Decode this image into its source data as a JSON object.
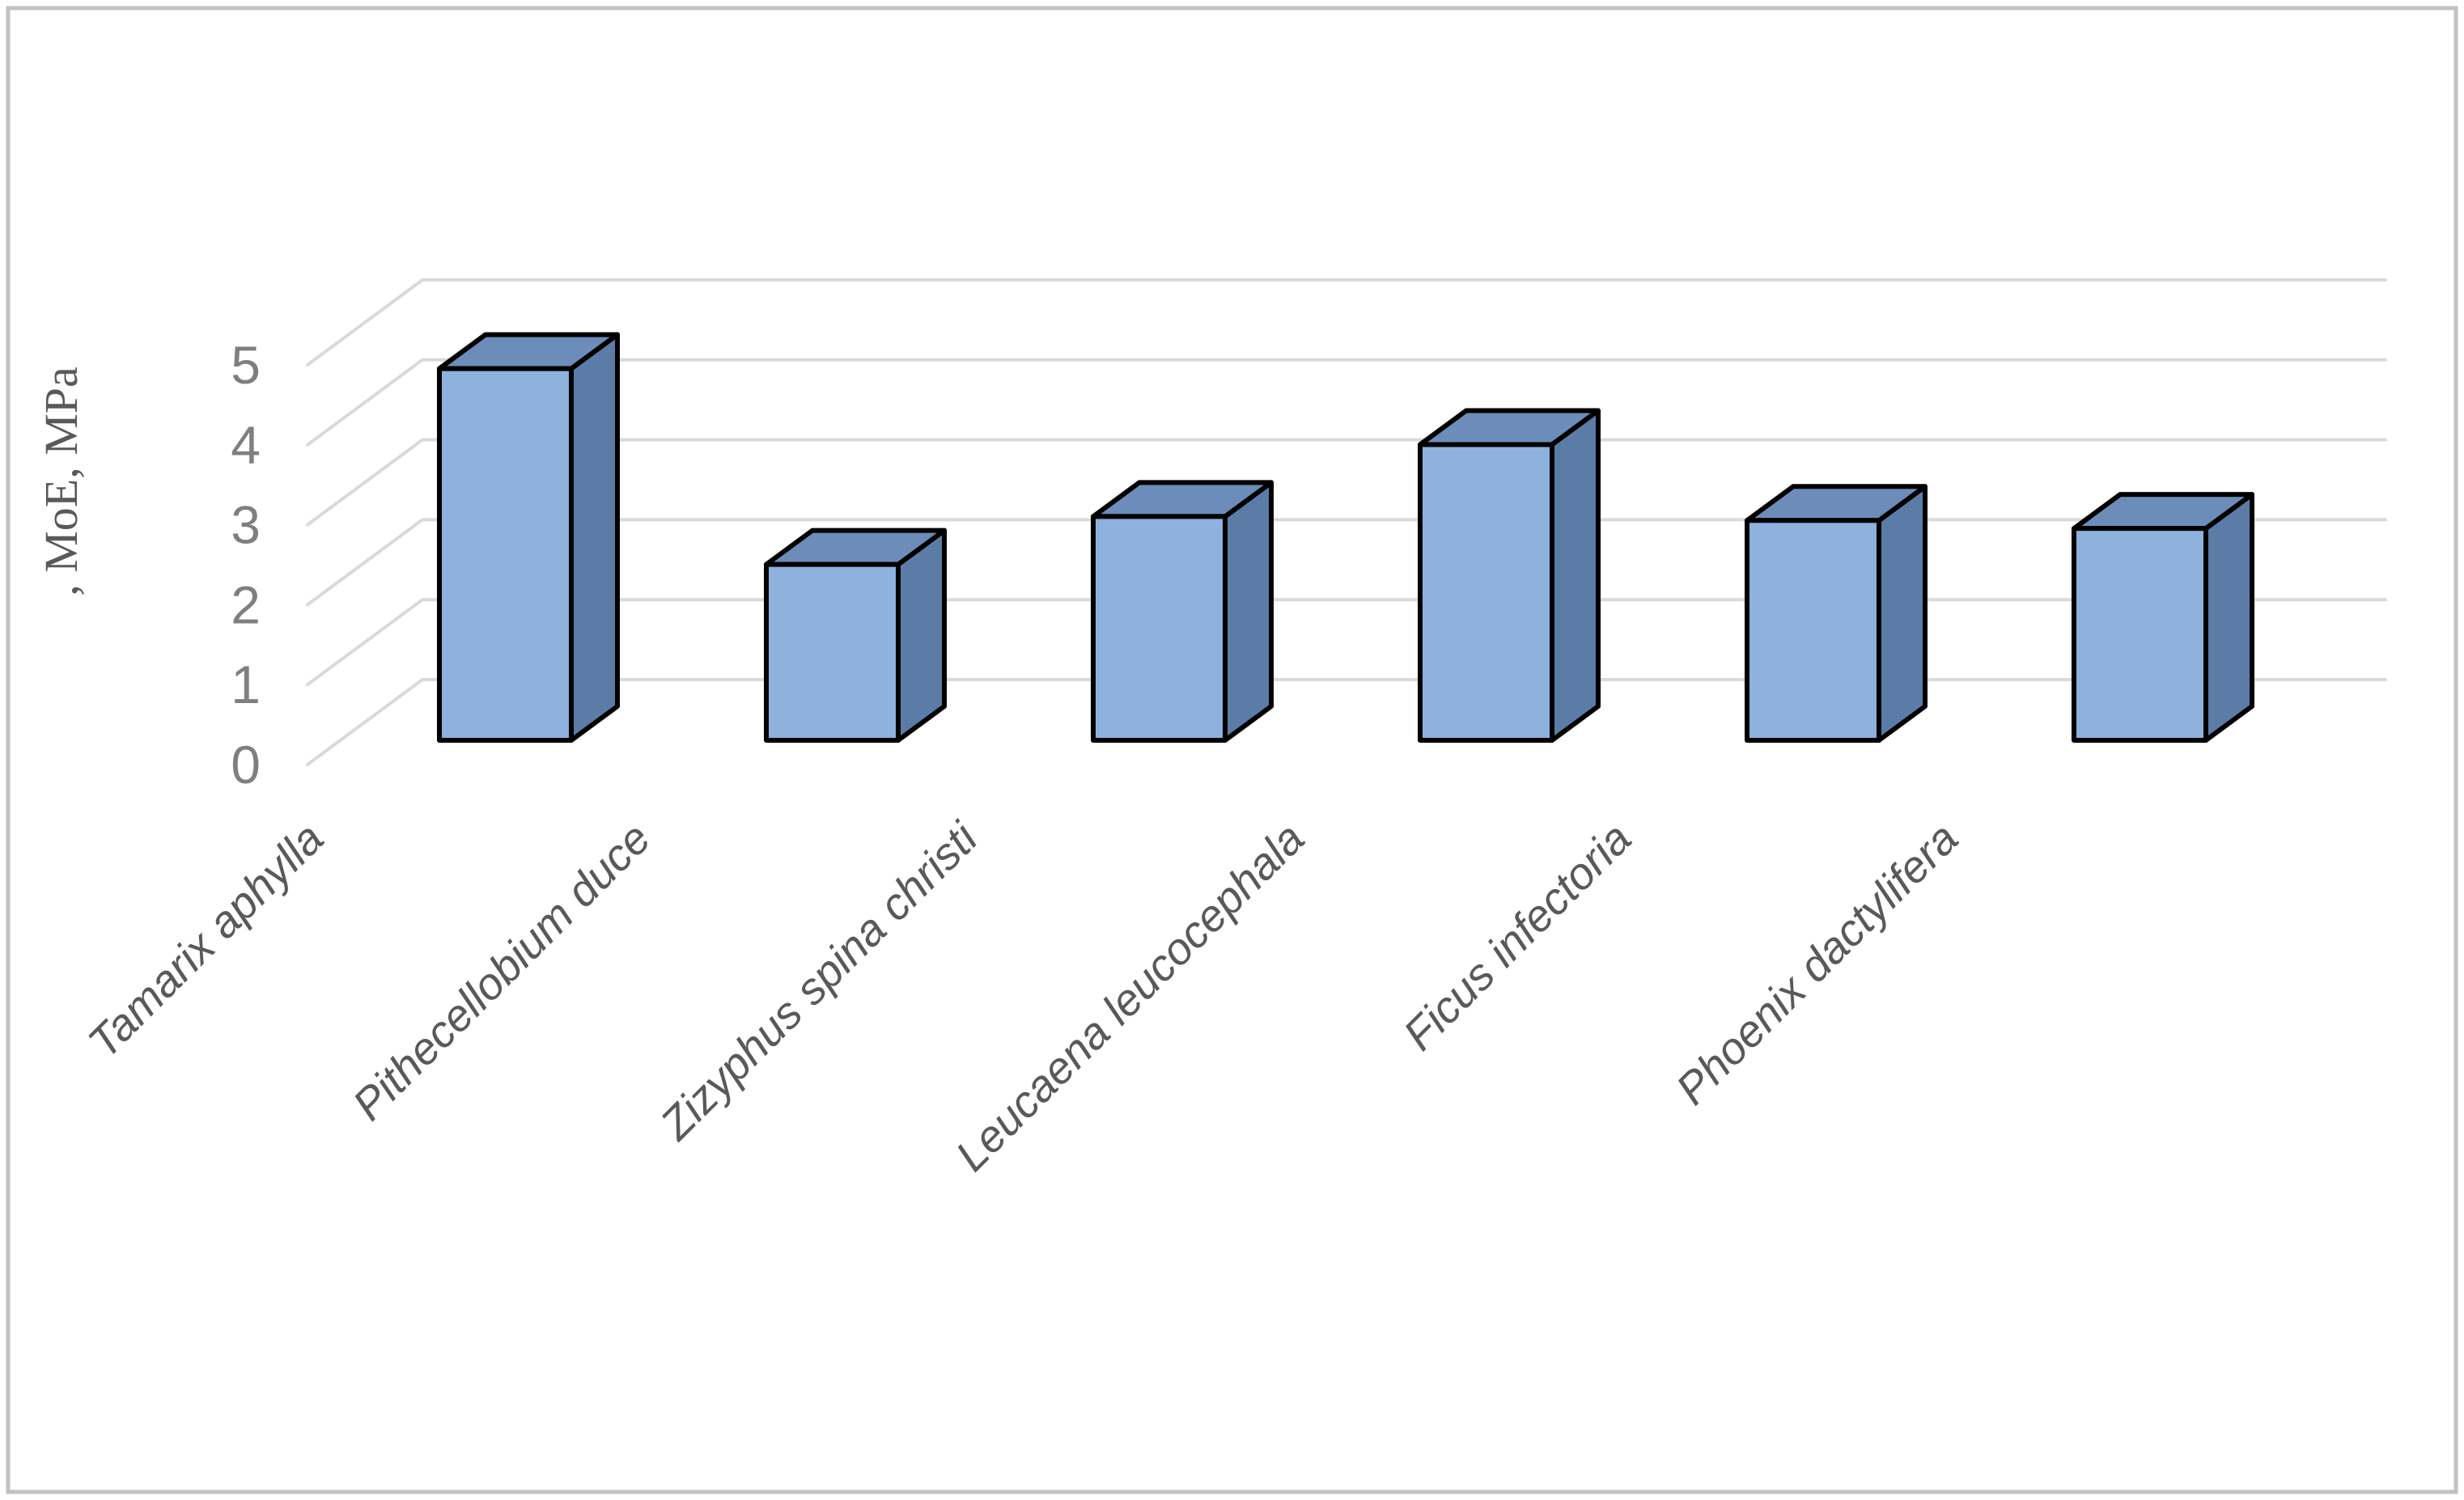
{
  "figure": {
    "kind": "3d-column-chart-screenshot",
    "background": "#FFFFFF"
  },
  "chart_data": {
    "type": "bar",
    "style": "3d-column",
    "title": "",
    "series_name": "MoE",
    "categories": [
      "Tamarix aphylla",
      "Pithecellobium duce",
      "Zizyphus spina christi",
      "Leucaena leucocephala",
      "Ficus infectoria",
      "Phoenix dactylifera"
    ],
    "values": [
      4.65,
      2.2,
      2.8,
      3.7,
      2.75,
      2.65
    ],
    "xlabel": "",
    "ylabel": ", MoE, MPa",
    "ylim": [
      0,
      5
    ],
    "yticks": [
      0,
      1,
      2,
      3,
      4,
      5
    ],
    "grid": true,
    "legend": false,
    "colors": {
      "bar_front": "#8EB1DE",
      "bar_top": "#6C8DB9",
      "bar_side": "#5C7CA8",
      "bar_outline": "#000000",
      "gridline": "#D9D9D9",
      "tick_label": "#7F7F7F",
      "category_label": "#595959",
      "axis_title": "#595959",
      "frame_border": "#C2C2C2",
      "background": "#FFFFFF"
    }
  }
}
